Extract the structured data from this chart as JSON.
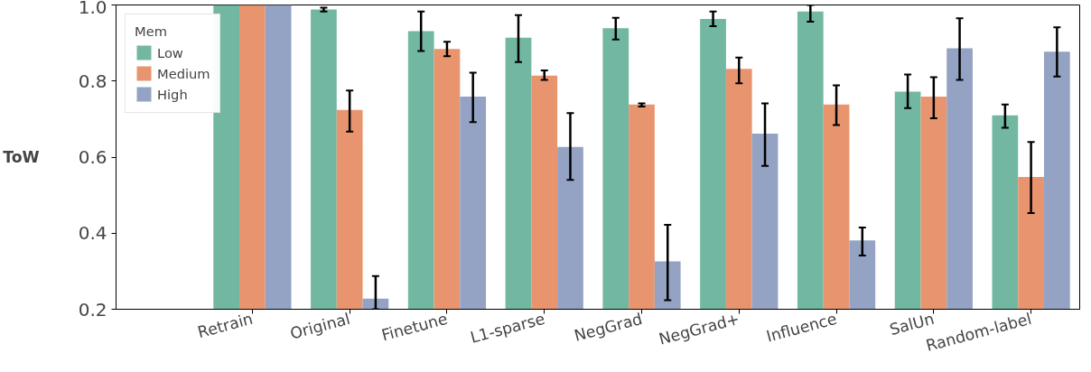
{
  "chart_data": {
    "type": "bar",
    "ylabel": "ToW",
    "legend_title": "Mem",
    "legend": "top left",
    "grid": false,
    "categories": [
      "Retrain",
      "Original",
      "Finetune",
      "L1-sparse",
      "NegGrad",
      "NegGrad+",
      "Influence",
      "SalUn",
      "Random-label"
    ],
    "ylim": [
      0.2,
      1.0
    ],
    "yticks": [
      0.2,
      0.4,
      0.6,
      0.8,
      {
        "value": 1,
        "label": "1.0"
      }
    ],
    "series": [
      {
        "name": "Low",
        "color": "#72b7a1",
        "values": [
          1.0,
          0.988,
          0.931,
          0.914,
          0.939,
          0.963,
          0.983,
          0.772,
          0.71
        ],
        "errors": [
          null,
          [
            0.983,
            0.993
          ],
          [
            0.879,
            0.983
          ],
          [
            0.85,
            0.973
          ],
          [
            0.909,
            0.966
          ],
          [
            0.944,
            0.983
          ],
          [
            0.956,
            1.0
          ],
          [
            0.729,
            0.817
          ],
          [
            0.677,
            0.738
          ]
        ]
      },
      {
        "name": "Medium",
        "color": "#e8956f",
        "values": [
          1.0,
          0.724,
          0.884,
          0.814,
          0.738,
          0.832,
          0.738,
          0.759,
          0.548
        ],
        "errors": [
          null,
          [
            0.667,
            0.775
          ],
          [
            0.865,
            0.903
          ],
          [
            0.803,
            0.828
          ],
          [
            0.733,
            0.741
          ],
          [
            0.794,
            0.862
          ],
          [
            0.684,
            0.789
          ],
          [
            0.702,
            0.81
          ],
          [
            0.453,
            0.64
          ]
        ]
      },
      {
        "name": "High",
        "color": "#94a3c4",
        "values": [
          1.0,
          0.228,
          0.759,
          0.627,
          0.326,
          0.662,
          0.381,
          0.886,
          0.877
        ],
        "errors": [
          null,
          [
            0.2,
            0.287
          ],
          [
            0.692,
            0.822
          ],
          [
            0.54,
            0.716
          ],
          [
            0.224,
            0.422
          ],
          [
            0.577,
            0.741
          ],
          [
            0.341,
            0.415
          ],
          [
            0.803,
            0.965
          ],
          [
            0.812,
            0.941
          ]
        ]
      }
    ]
  }
}
